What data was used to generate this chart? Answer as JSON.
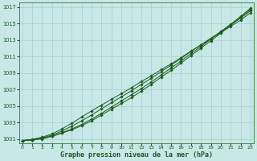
{
  "title": "Graphe pression niveau de la mer (hPa)",
  "xlabel_hours": [
    0,
    1,
    2,
    3,
    4,
    5,
    6,
    7,
    8,
    9,
    10,
    11,
    12,
    13,
    14,
    15,
    16,
    17,
    18,
    19,
    20,
    21,
    22,
    23
  ],
  "ylim": [
    1000.5,
    1017.5
  ],
  "yticks": [
    1001,
    1003,
    1005,
    1007,
    1009,
    1011,
    1013,
    1015,
    1017
  ],
  "xlim": [
    -0.3,
    23.3
  ],
  "line1": [
    1000.8,
    1000.9,
    1001.0,
    1001.3,
    1001.7,
    1002.1,
    1002.6,
    1003.2,
    1003.9,
    1004.6,
    1005.3,
    1006.0,
    1006.8,
    1007.6,
    1008.5,
    1009.3,
    1010.2,
    1011.1,
    1012.0,
    1012.9,
    1013.8,
    1014.8,
    1015.7,
    1016.7
  ],
  "line2": [
    1000.8,
    1000.85,
    1001.05,
    1001.35,
    1001.75,
    1002.2,
    1002.75,
    1003.4,
    1004.1,
    1004.85,
    1005.6,
    1006.35,
    1007.1,
    1007.9,
    1008.75,
    1009.6,
    1010.45,
    1011.35,
    1012.2,
    1013.1,
    1014.0,
    1014.9,
    1015.85,
    1016.85
  ],
  "line3": [
    1000.8,
    1000.9,
    1001.1,
    1001.45,
    1001.95,
    1002.55,
    1003.2,
    1003.9,
    1004.65,
    1005.4,
    1006.1,
    1006.85,
    1007.6,
    1008.35,
    1009.15,
    1009.95,
    1010.75,
    1011.6,
    1012.4,
    1013.2,
    1014.0,
    1014.85,
    1015.65,
    1016.55
  ],
  "line4": [
    1000.8,
    1000.95,
    1001.2,
    1001.6,
    1002.2,
    1002.9,
    1003.65,
    1004.4,
    1005.1,
    1005.8,
    1006.5,
    1007.2,
    1007.95,
    1008.65,
    1009.4,
    1010.1,
    1010.85,
    1011.65,
    1012.4,
    1013.15,
    1013.9,
    1014.65,
    1015.4,
    1016.3
  ],
  "line_color": "#1a5c1a",
  "marker_color": "#1a5c1a",
  "bg_color": "#c8e8e8",
  "grid_color": "#a8cece",
  "title_color": "#1a5c1a",
  "tick_color": "#1a5c1a",
  "axis_bg": "#c8e8e8"
}
